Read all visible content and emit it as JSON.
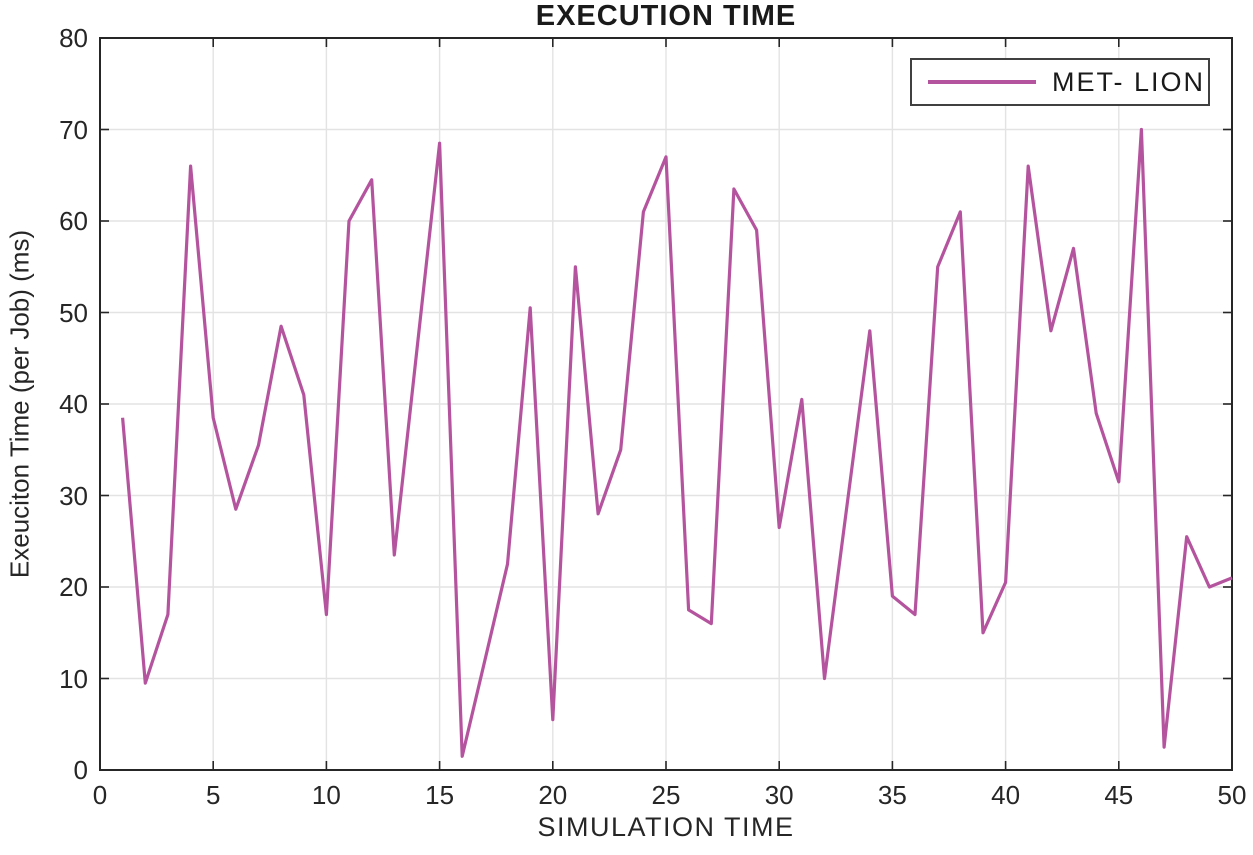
{
  "title": "EXECUTION TIME",
  "axes": {
    "xlabel": "SIMULATION TIME",
    "ylabel": "Exeuciton Time (per Job) (ms)"
  },
  "legend": {
    "label": "MET- LION",
    "position": "top-right"
  },
  "colors": {
    "line": "#b5549e",
    "grid": "#e3e3e3",
    "axis": "#262626",
    "text": "#262626",
    "title_text": "#1a1a1a",
    "background": "#ffffff"
  },
  "chart_data": {
    "type": "line",
    "title": "EXECUTION TIME",
    "xlabel": "SIMULATION TIME",
    "ylabel": "Exeuciton Time (per Job) (ms)",
    "xlim": [
      0,
      50
    ],
    "ylim": [
      0,
      80
    ],
    "x_ticks": [
      0,
      5,
      10,
      15,
      20,
      25,
      30,
      35,
      40,
      45,
      50
    ],
    "y_ticks": [
      0,
      10,
      20,
      30,
      40,
      50,
      60,
      70,
      80
    ],
    "grid": true,
    "legend_position": "top-right",
    "series": [
      {
        "name": "MET- LION",
        "color": "#b5549e",
        "x": [
          1,
          2,
          3,
          4,
          5,
          6,
          7,
          8,
          9,
          10,
          11,
          12,
          13,
          14,
          15,
          16,
          17,
          18,
          19,
          20,
          21,
          22,
          23,
          24,
          25,
          26,
          27,
          28,
          29,
          30,
          31,
          32,
          33,
          34,
          35,
          36,
          37,
          38,
          39,
          40,
          41,
          42,
          43,
          44,
          45,
          46,
          47,
          48,
          49,
          50
        ],
        "values": [
          38.5,
          9.5,
          17,
          66,
          38.5,
          28.5,
          35.5,
          48.5,
          41,
          17,
          60,
          64.5,
          23.5,
          46,
          68.5,
          1.5,
          12,
          22.5,
          50.5,
          5.5,
          55,
          28,
          35,
          61,
          67,
          17.5,
          16,
          63.5,
          59,
          26.5,
          40.5,
          10,
          29,
          48,
          19,
          17,
          55,
          61,
          15,
          20.5,
          66,
          48,
          57,
          39,
          31.5,
          70,
          2.5,
          25.5,
          20,
          21
        ]
      }
    ]
  }
}
